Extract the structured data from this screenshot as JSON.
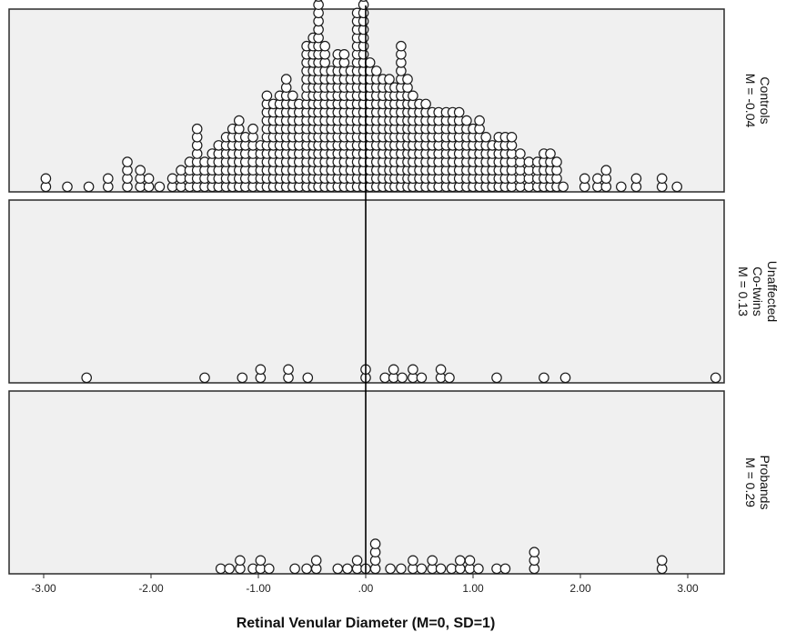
{
  "chart_data": {
    "type": "scatter",
    "subtype": "stacked dot plot (faceted)",
    "xlabel": "Retinal Venular Diameter (M=0, SD=1)",
    "xlim": [
      -3.3,
      3.35
    ],
    "x_ticks": [
      "-3.00",
      "-2.00",
      "-1.00",
      ".00",
      "1.00",
      "2.00",
      "3.00"
    ],
    "x_tick_values": [
      -3,
      -2,
      -1,
      0,
      1,
      2,
      3
    ],
    "reference_line_x": 0,
    "grid": false,
    "panel_background": "#f0f0f0",
    "marker": "open circle",
    "panels": [
      {
        "label_lines": [
          "Controls",
          "M = -0.04"
        ],
        "mean": -0.04,
        "stacks": [
          [
            -2.98,
            2
          ],
          [
            -2.78,
            1
          ],
          [
            -2.58,
            1
          ],
          [
            -2.4,
            2
          ],
          [
            -2.22,
            4
          ],
          [
            -2.1,
            3
          ],
          [
            -2.02,
            2
          ],
          [
            -1.92,
            1
          ],
          [
            -1.8,
            2
          ],
          [
            -1.72,
            3
          ],
          [
            -1.64,
            4
          ],
          [
            -1.57,
            8
          ],
          [
            -1.5,
            4
          ],
          [
            -1.43,
            5
          ],
          [
            -1.37,
            6
          ],
          [
            -1.3,
            7
          ],
          [
            -1.24,
            8
          ],
          [
            -1.18,
            9
          ],
          [
            -1.12,
            7
          ],
          [
            -1.05,
            8
          ],
          [
            -0.98,
            6
          ],
          [
            -0.92,
            12
          ],
          [
            -0.86,
            11
          ],
          [
            -0.8,
            12
          ],
          [
            -0.74,
            14
          ],
          [
            -0.68,
            12
          ],
          [
            -0.62,
            11
          ],
          [
            -0.55,
            18
          ],
          [
            -0.49,
            19
          ],
          [
            -0.44,
            25
          ],
          [
            -0.38,
            18
          ],
          [
            -0.32,
            15
          ],
          [
            -0.26,
            17
          ],
          [
            -0.2,
            17
          ],
          [
            -0.14,
            15
          ],
          [
            -0.08,
            22
          ],
          [
            -0.02,
            25
          ],
          [
            0.04,
            16
          ],
          [
            0.1,
            15
          ],
          [
            0.16,
            14
          ],
          [
            0.22,
            14
          ],
          [
            0.27,
            13
          ],
          [
            0.33,
            18
          ],
          [
            0.39,
            14
          ],
          [
            0.44,
            12
          ],
          [
            0.5,
            11
          ],
          [
            0.56,
            11
          ],
          [
            0.62,
            10
          ],
          [
            0.68,
            10
          ],
          [
            0.75,
            10
          ],
          [
            0.81,
            10
          ],
          [
            0.87,
            10
          ],
          [
            0.94,
            9
          ],
          [
            1.0,
            8
          ],
          [
            1.06,
            9
          ],
          [
            1.12,
            7
          ],
          [
            1.18,
            6
          ],
          [
            1.24,
            7
          ],
          [
            1.3,
            7
          ],
          [
            1.36,
            7
          ],
          [
            1.44,
            5
          ],
          [
            1.52,
            4
          ],
          [
            1.6,
            4
          ],
          [
            1.66,
            5
          ],
          [
            1.72,
            5
          ],
          [
            1.78,
            4
          ],
          [
            1.84,
            1
          ],
          [
            2.04,
            2
          ],
          [
            2.16,
            2
          ],
          [
            2.24,
            3
          ],
          [
            2.38,
            1
          ],
          [
            2.52,
            2
          ],
          [
            2.76,
            2
          ],
          [
            2.9,
            1
          ]
        ]
      },
      {
        "label_lines": [
          "Unaffected",
          "Co-twins",
          "M = 0.13"
        ],
        "mean": 0.13,
        "stacks": [
          [
            -2.6,
            1
          ],
          [
            -1.5,
            1
          ],
          [
            -1.15,
            1
          ],
          [
            -0.98,
            2
          ],
          [
            -0.72,
            2
          ],
          [
            -0.54,
            1
          ],
          [
            0.0,
            2
          ],
          [
            0.18,
            1
          ],
          [
            0.26,
            2
          ],
          [
            0.34,
            1
          ],
          [
            0.44,
            2
          ],
          [
            0.52,
            1
          ],
          [
            0.7,
            2
          ],
          [
            0.78,
            1
          ],
          [
            1.22,
            1
          ],
          [
            1.66,
            1
          ],
          [
            1.86,
            1
          ],
          [
            3.26,
            1
          ]
        ]
      },
      {
        "label_lines": [
          "Probands",
          "M = 0.29"
        ],
        "mean": 0.29,
        "stacks": [
          [
            -1.35,
            1
          ],
          [
            -1.27,
            1
          ],
          [
            -1.17,
            2
          ],
          [
            -1.05,
            1
          ],
          [
            -0.98,
            2
          ],
          [
            -0.9,
            1
          ],
          [
            -0.66,
            1
          ],
          [
            -0.55,
            1
          ],
          [
            -0.46,
            2
          ],
          [
            -0.26,
            1
          ],
          [
            -0.17,
            1
          ],
          [
            -0.08,
            2
          ],
          [
            0.0,
            1
          ],
          [
            0.09,
            4
          ],
          [
            0.23,
            1
          ],
          [
            0.33,
            1
          ],
          [
            0.44,
            2
          ],
          [
            0.52,
            1
          ],
          [
            0.62,
            2
          ],
          [
            0.7,
            1
          ],
          [
            0.8,
            1
          ],
          [
            0.88,
            2
          ],
          [
            0.97,
            2
          ],
          [
            1.05,
            1
          ],
          [
            1.22,
            1
          ],
          [
            1.3,
            1
          ],
          [
            1.57,
            3
          ],
          [
            2.76,
            2
          ]
        ]
      }
    ]
  }
}
